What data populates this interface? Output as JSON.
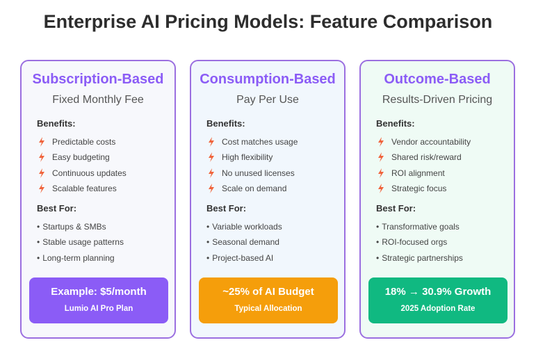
{
  "title": "Enterprise AI Pricing Models: Feature Comparison",
  "colors": {
    "accent_purple": "#8b5cf6",
    "card_border": "#9b6fe0",
    "bolt": "#f0643c",
    "banner_subscription": "#8b5cf6",
    "banner_consumption": "#f59e0b",
    "banner_outcome": "#10b981"
  },
  "cards": [
    {
      "title": "Subscription-Based",
      "subtitle": "Fixed Monthly Fee",
      "benefits_label": "Benefits:",
      "benefits": [
        "Predictable costs",
        "Easy budgeting",
        "Continuous updates",
        "Scalable features"
      ],
      "best_for_label": "Best For:",
      "best_for": [
        "Startups & SMBs",
        "Stable usage patterns",
        "Long-term planning"
      ],
      "banner_main": "Example: $5/month",
      "banner_sub": "Lumio AI Pro Plan"
    },
    {
      "title": "Consumption-Based",
      "subtitle": "Pay Per Use",
      "benefits_label": "Benefits:",
      "benefits": [
        "Cost matches usage",
        "High flexibility",
        "No unused licenses",
        "Scale on demand"
      ],
      "best_for_label": "Best For:",
      "best_for": [
        "Variable workloads",
        "Seasonal demand",
        "Project-based AI"
      ],
      "banner_main": "~25% of AI Budget",
      "banner_sub": "Typical Allocation"
    },
    {
      "title": "Outcome-Based",
      "subtitle": "Results-Driven Pricing",
      "benefits_label": "Benefits:",
      "benefits": [
        "Vendor accountability",
        "Shared risk/reward",
        "ROI alignment",
        "Strategic focus"
      ],
      "best_for_label": "Best For:",
      "best_for": [
        "Transformative goals",
        "ROI-focused orgs",
        "Strategic partnerships"
      ],
      "banner_main": "18% → 30.9% Growth",
      "banner_sub": "2025 Adoption Rate"
    }
  ],
  "icons": {
    "benefit": "lightning-bolt-icon",
    "best_for": "bullet-dot"
  }
}
